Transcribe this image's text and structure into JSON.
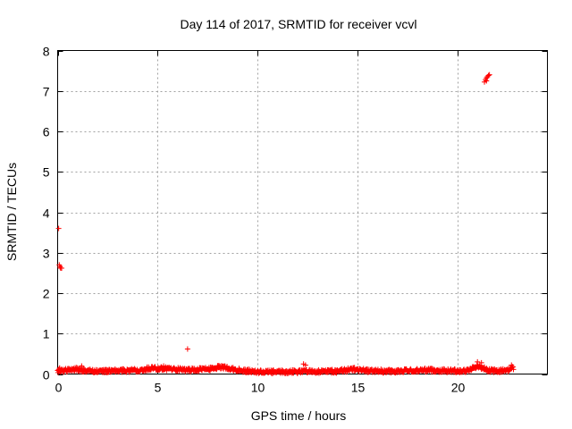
{
  "chart_data": {
    "type": "scatter",
    "title": "Day 114 of 2017, SRMTID for receiver vcvl",
    "xlabel": "GPS time / hours",
    "ylabel": "SRMTID / TECUs",
    "xlim": [
      0,
      24.5
    ],
    "ylim": [
      0,
      8
    ],
    "xticks": [
      0,
      5,
      10,
      15,
      20
    ],
    "yticks": [
      0,
      1,
      2,
      3,
      4,
      5,
      6,
      7,
      8
    ],
    "grid": true,
    "marker": "plus",
    "color": "#ff0000",
    "series": [
      {
        "name": "SRMTID",
        "baseline_profile": [
          [
            0.0,
            0.08
          ],
          [
            0.5,
            0.1
          ],
          [
            1.0,
            0.12
          ],
          [
            1.5,
            0.08
          ],
          [
            2.0,
            0.07
          ],
          [
            3.0,
            0.08
          ],
          [
            4.0,
            0.1
          ],
          [
            4.8,
            0.15
          ],
          [
            5.5,
            0.13
          ],
          [
            6.5,
            0.1
          ],
          [
            7.5,
            0.12
          ],
          [
            8.2,
            0.18
          ],
          [
            9.0,
            0.1
          ],
          [
            10.0,
            0.05
          ],
          [
            11.0,
            0.05
          ],
          [
            12.0,
            0.06
          ],
          [
            12.5,
            0.08
          ],
          [
            13.0,
            0.06
          ],
          [
            14.0,
            0.07
          ],
          [
            14.8,
            0.12
          ],
          [
            15.5,
            0.08
          ],
          [
            16.5,
            0.07
          ],
          [
            17.5,
            0.08
          ],
          [
            18.5,
            0.1
          ],
          [
            19.5,
            0.08
          ],
          [
            20.5,
            0.08
          ],
          [
            21.0,
            0.2
          ],
          [
            21.5,
            0.1
          ],
          [
            22.0,
            0.07
          ],
          [
            22.5,
            0.1
          ],
          [
            22.8,
            0.15
          ]
        ],
        "points": [
          [
            0.05,
            3.6
          ],
          [
            0.08,
            2.7
          ],
          [
            0.12,
            2.65
          ],
          [
            0.15,
            2.62
          ],
          [
            0.2,
            2.62
          ],
          [
            0.1,
            0.15
          ],
          [
            0.15,
            0.05
          ],
          [
            1.2,
            0.2
          ],
          [
            5.3,
            0.2
          ],
          [
            6.5,
            0.62
          ],
          [
            12.3,
            0.25
          ],
          [
            12.4,
            0.22
          ],
          [
            21.0,
            0.3
          ],
          [
            21.2,
            0.28
          ],
          [
            21.35,
            7.22
          ],
          [
            21.4,
            7.28
          ],
          [
            21.45,
            7.32
          ],
          [
            21.5,
            7.35
          ],
          [
            21.55,
            7.38
          ],
          [
            21.6,
            7.4
          ],
          [
            21.45,
            7.25
          ],
          [
            22.7,
            0.22
          ]
        ]
      }
    ]
  }
}
